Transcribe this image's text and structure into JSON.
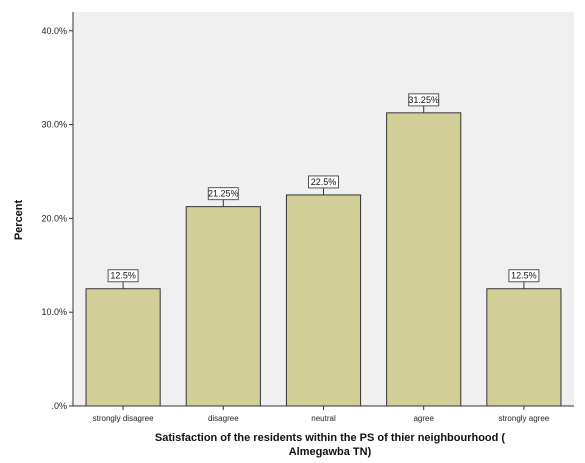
{
  "chart_data": {
    "type": "bar",
    "categories": [
      "strongly disagree",
      "disagree",
      "neutral",
      "agree",
      "strongly agree"
    ],
    "values": [
      12.5,
      21.25,
      22.5,
      31.25,
      12.5
    ],
    "data_labels": [
      "12.5%",
      "21.25%",
      "22.5%",
      "31.25%",
      "12.5%"
    ],
    "xlabel_line1": "Satisfaction of the residents within the PS of thier neighbourhood (",
    "xlabel_line2": "Almegawba TN)",
    "ylabel": "Percent",
    "ylim": [
      0,
      42
    ],
    "yticks": [
      0,
      10,
      20,
      30,
      40
    ],
    "ytick_labels": [
      ".0%",
      "10.0%",
      "20.0%",
      "30.0%",
      "40.0%"
    ],
    "grid": false,
    "colors": {
      "plot_background": "#f0f0f0",
      "bar_fill": "#d3cf98",
      "bar_stroke": "#333333",
      "axis": "#333333"
    }
  }
}
